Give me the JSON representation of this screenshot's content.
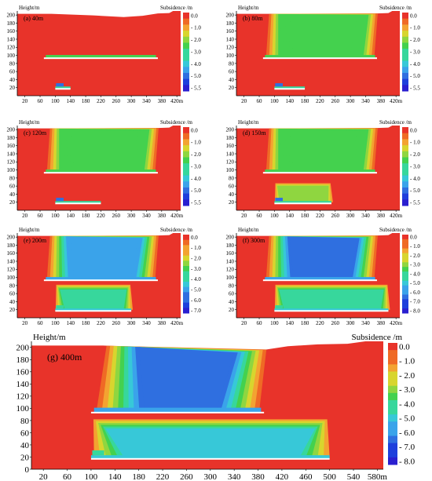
{
  "figure": {
    "y_axis_label": "Height/m",
    "legend_title": "Subsidence /m",
    "colors": {
      "background": "#e8332a",
      "bands": [
        "#e8332a",
        "#ef6a25",
        "#f3a331",
        "#d8d52e",
        "#8fd640",
        "#44d14e",
        "#37d79c",
        "#37c8d8",
        "#3aa3ea",
        "#2f6fe0",
        "#1e3fdc",
        "#2a1fd0"
      ],
      "coal_seam": "#ffffff",
      "axis": "#000000"
    }
  },
  "panels": [
    {
      "id": "a",
      "label": "(a)  40m",
      "y_ticks": [
        "200",
        "180",
        "160",
        "140",
        "120",
        "100",
        "80",
        "60",
        "40",
        "20"
      ],
      "x_ticks": [
        "20",
        "60",
        "100",
        "140",
        "180",
        "220",
        "260",
        "300",
        "340",
        "380",
        "420m"
      ],
      "legend_ticks": [
        "0.0",
        "- 1.0",
        "- 2.0",
        "- 3.0",
        "- 4.0",
        "- 5.0",
        "- 5.5"
      ]
    },
    {
      "id": "b",
      "label": "(b)  80m",
      "y_ticks": [
        "200",
        "180",
        "160",
        "140",
        "120",
        "100",
        "80",
        "60",
        "40",
        "20"
      ],
      "x_ticks": [
        "20",
        "60",
        "100",
        "140",
        "180",
        "220",
        "260",
        "300",
        "340",
        "380",
        "420m"
      ],
      "legend_ticks": [
        "0.0",
        "- 1.0",
        "- 2.0",
        "- 3.0",
        "- 4.0",
        "- 5.0",
        "- 5.5"
      ]
    },
    {
      "id": "c",
      "label": "(c)  120m",
      "y_ticks": [
        "200",
        "180",
        "160",
        "140",
        "120",
        "100",
        "80",
        "60",
        "40",
        "20"
      ],
      "x_ticks": [
        "20",
        "60",
        "100",
        "140",
        "180",
        "220",
        "260",
        "300",
        "340",
        "380",
        "420m"
      ],
      "legend_ticks": [
        "0.0",
        "- 1.0",
        "- 2.0",
        "- 3.0",
        "- 4.0",
        "- 5.0",
        "- 5.5"
      ]
    },
    {
      "id": "d",
      "label": "(d)  150m",
      "y_ticks": [
        "200",
        "180",
        "160",
        "140",
        "120",
        "100",
        "80",
        "60",
        "40",
        "20"
      ],
      "x_ticks": [
        "20",
        "60",
        "100",
        "140",
        "180",
        "220",
        "260",
        "300",
        "340",
        "380",
        "420m"
      ],
      "legend_ticks": [
        "0.0",
        "- 1.0",
        "- 2.0",
        "- 3.0",
        "- 4.0",
        "- 5.0",
        "- 5.5"
      ]
    },
    {
      "id": "e",
      "label": "(e)  200m",
      "y_ticks": [
        "200",
        "180",
        "160",
        "140",
        "120",
        "100",
        "80",
        "60",
        "40",
        "20"
      ],
      "x_ticks": [
        "20",
        "60",
        "100",
        "140",
        "180",
        "220",
        "260",
        "300",
        "340",
        "380",
        "420m"
      ],
      "legend_ticks": [
        "0.0",
        "- 1.0",
        "- 2.0",
        "- 3.0",
        "- 4.0",
        "- 5.0",
        "- 6.0",
        "- 7.0"
      ]
    },
    {
      "id": "f",
      "label": "(f)  300m",
      "y_ticks": [
        "200",
        "180",
        "160",
        "140",
        "120",
        "100",
        "80",
        "60",
        "40",
        "20"
      ],
      "x_ticks": [
        "20",
        "60",
        "100",
        "140",
        "180",
        "220",
        "260",
        "300",
        "340",
        "380",
        "420m"
      ],
      "legend_ticks": [
        "0.0",
        "- 1.0",
        "- 2.0",
        "- 3.0",
        "- 4.0",
        "- 5.0",
        "- 6.0",
        "- 7.0",
        "- 8.0"
      ]
    },
    {
      "id": "g",
      "label": "(g)  400m",
      "y_ticks": [
        "200",
        "180",
        "160",
        "140",
        "120",
        "100",
        "80",
        "60",
        "40",
        "20",
        "0"
      ],
      "x_ticks": [
        "20",
        "60",
        "100",
        "140",
        "180",
        "220",
        "260",
        "300",
        "340",
        "380",
        "420",
        "460",
        "500",
        "540",
        "580m"
      ],
      "legend_ticks": [
        "0.0",
        "- 1.0",
        "- 2.0",
        "- 3.0",
        "- 4.0",
        "- 5.0",
        "- 6.0",
        "- 7.0",
        "- 8.0"
      ]
    }
  ]
}
